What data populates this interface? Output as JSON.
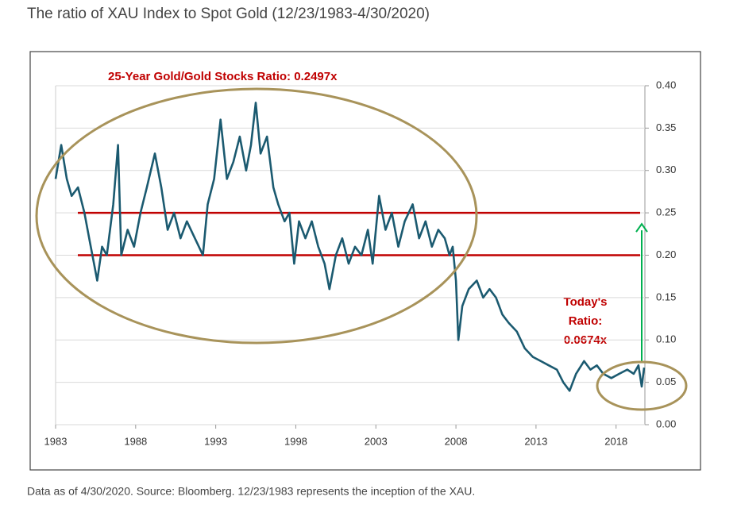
{
  "chart_data": {
    "type": "line",
    "title": "The ratio of XAU Index to Spot Gold (12/23/1983-4/30/2020)",
    "footnote": "Data as of 4/30/2020. Source: Bloomberg. 12/23/1983 represents the inception of the XAU.",
    "annotation": "25-Year Gold/Gold Stocks Ratio: 0.2497x",
    "today_label": [
      "Today's",
      "Ratio:",
      "0.0674x"
    ],
    "xlim": [
      1983,
      2019.8
    ],
    "xticks": [
      1983,
      1988,
      1993,
      1998,
      2003,
      2008,
      2013,
      2018
    ],
    "ylim": [
      0,
      0.4
    ],
    "yticks": [
      {
        "value": 0,
        "label": "0.00"
      },
      {
        "value": 0.05,
        "label": "0.05"
      },
      {
        "value": 0.1,
        "label": "0.10"
      },
      {
        "value": 0.15,
        "label": "0.15"
      },
      {
        "value": 0.2,
        "label": "0.20"
      },
      {
        "value": 0.25,
        "label": "0.25"
      },
      {
        "value": 0.3,
        "label": "0.30"
      },
      {
        "value": 0.35,
        "label": "0.35"
      },
      {
        "value": 0.4,
        "label": "0.40"
      }
    ],
    "grid": true,
    "hlines": [
      0.25,
      0.2
    ],
    "hline_color": "#c00000",
    "arrow_color": "#00b050",
    "series": [
      {
        "color": "#1b5a70",
        "x": [
          1983.0,
          1983.35,
          1983.7,
          1984.0,
          1984.4,
          1984.8,
          1985.1,
          1985.4,
          1985.6,
          1985.9,
          1986.2,
          1986.6,
          1986.9,
          1987.1,
          1987.5,
          1987.9,
          1988.3,
          1988.7,
          1989.2,
          1989.6,
          1990.0,
          1990.4,
          1990.8,
          1991.2,
          1991.7,
          1992.2,
          1992.5,
          1992.9,
          1993.3,
          1993.7,
          1994.1,
          1994.5,
          1994.9,
          1995.2,
          1995.5,
          1995.8,
          1996.2,
          1996.6,
          1996.9,
          1997.3,
          1997.6,
          1997.9,
          1998.2,
          1998.6,
          1999.0,
          1999.4,
          1999.8,
          2000.1,
          2000.5,
          2000.9,
          2001.3,
          2001.7,
          2002.1,
          2002.5,
          2002.8,
          2003.2,
          2003.6,
          2004.0,
          2004.4,
          2004.8,
          2005.3,
          2005.7,
          2006.1,
          2006.5,
          2006.9,
          2007.3,
          2007.6,
          2007.8,
          2008.0,
          2008.15,
          2008.4,
          2008.8,
          2009.3,
          2009.7,
          2010.1,
          2010.5,
          2010.9,
          2011.3,
          2011.8,
          2012.3,
          2012.8,
          2013.3,
          2013.8,
          2014.3,
          2014.7,
          2015.1,
          2015.5,
          2016.0,
          2016.4,
          2016.8,
          2017.2,
          2017.7,
          2018.2,
          2018.7,
          2019.1,
          2019.4,
          2019.6,
          2019.75
        ],
        "values": [
          0.29,
          0.33,
          0.29,
          0.27,
          0.28,
          0.25,
          0.22,
          0.19,
          0.17,
          0.21,
          0.2,
          0.26,
          0.33,
          0.2,
          0.23,
          0.21,
          0.25,
          0.28,
          0.32,
          0.28,
          0.23,
          0.25,
          0.22,
          0.24,
          0.22,
          0.2,
          0.26,
          0.29,
          0.36,
          0.29,
          0.31,
          0.34,
          0.3,
          0.33,
          0.38,
          0.32,
          0.34,
          0.28,
          0.26,
          0.24,
          0.25,
          0.19,
          0.24,
          0.22,
          0.24,
          0.21,
          0.19,
          0.16,
          0.2,
          0.22,
          0.19,
          0.21,
          0.2,
          0.23,
          0.19,
          0.27,
          0.23,
          0.25,
          0.21,
          0.24,
          0.26,
          0.22,
          0.24,
          0.21,
          0.23,
          0.22,
          0.2,
          0.21,
          0.17,
          0.1,
          0.14,
          0.16,
          0.17,
          0.15,
          0.16,
          0.15,
          0.13,
          0.12,
          0.11,
          0.09,
          0.08,
          0.075,
          0.07,
          0.065,
          0.05,
          0.04,
          0.06,
          0.075,
          0.065,
          0.07,
          0.06,
          0.055,
          0.06,
          0.065,
          0.06,
          0.07,
          0.045,
          0.0674
        ]
      }
    ]
  }
}
